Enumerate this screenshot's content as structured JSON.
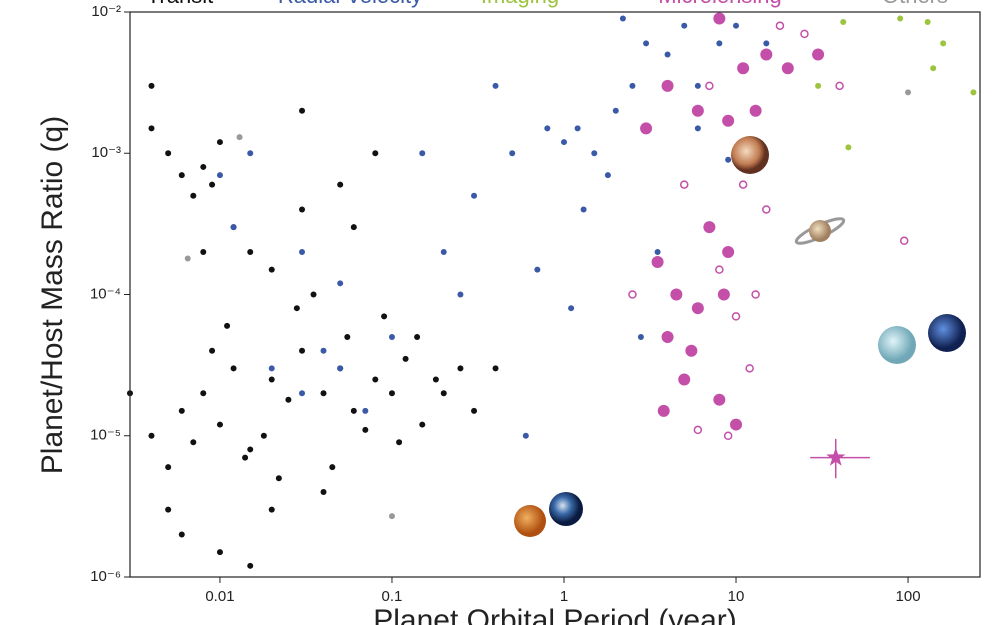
{
  "chart_data": {
    "type": "scatter",
    "xlabel": "Planet Orbital Period (year)",
    "ylabel": "Planet/Host Mass Ratio (q)",
    "xscale": "log",
    "yscale": "log",
    "legend": "top",
    "xlim": [
      0.003,
      262
    ],
    "ylim": [
      1e-06,
      0.01
    ],
    "xticks": [
      0.01,
      0.1,
      1,
      10,
      100
    ],
    "yticks": [
      {
        "value": 0.01,
        "label": "10⁻²"
      },
      {
        "value": 0.001,
        "label": "10⁻³"
      },
      {
        "value": 0.0001,
        "label": "10⁻⁴"
      },
      {
        "value": 1e-05,
        "label": "10⁻⁵"
      },
      {
        "value": 1e-06,
        "label": "10⁻⁶"
      }
    ],
    "series": [
      {
        "name": "Transit",
        "color": "#111111",
        "x": [
          0.004,
          0.006,
          0.008,
          0.01,
          0.012,
          0.015,
          0.02,
          0.025,
          0.03,
          0.04,
          0.05,
          0.06,
          0.08,
          0.1,
          0.12,
          0.15,
          0.2,
          0.25,
          0.3,
          0.005,
          0.007,
          0.009,
          0.011,
          0.014,
          0.018,
          0.022,
          0.028,
          0.035,
          0.045,
          0.055,
          0.07,
          0.09,
          0.11,
          0.14,
          0.18,
          0.004,
          0.005,
          0.006,
          0.007,
          0.008,
          0.009,
          0.01,
          0.012,
          0.004,
          0.015,
          0.02,
          0.03,
          0.05,
          0.08,
          0.006,
          0.01,
          0.02,
          0.04,
          0.003,
          0.005,
          0.008,
          0.015,
          0.03,
          0.06,
          0.4
        ],
        "y": [
          1e-05,
          1.5e-05,
          2e-05,
          1.2e-05,
          3e-05,
          8e-06,
          2.5e-05,
          1.8e-05,
          4e-05,
          2e-05,
          3e-05,
          1.5e-05,
          2.5e-05,
          2e-05,
          3.5e-05,
          1.2e-05,
          2e-05,
          3e-05,
          1.5e-05,
          6e-06,
          9e-06,
          4e-05,
          6e-05,
          7e-06,
          1e-05,
          5e-06,
          8e-05,
          0.0001,
          6e-06,
          5e-05,
          1.1e-05,
          7e-05,
          9e-06,
          5e-05,
          2.5e-05,
          0.0015,
          0.001,
          0.0007,
          0.0005,
          0.0008,
          0.0006,
          0.0012,
          0.0003,
          0.003,
          0.0002,
          0.00015,
          0.0004,
          0.0006,
          0.001,
          2e-06,
          1.5e-06,
          3e-06,
          4e-06,
          2e-05,
          3e-06,
          0.0002,
          1.2e-06,
          0.002,
          0.0003,
          3e-05
        ]
      },
      {
        "name": "Radial Velocity",
        "color": "#3a5aa8",
        "x": [
          0.01,
          0.015,
          0.02,
          0.03,
          0.04,
          0.05,
          0.07,
          0.1,
          0.03,
          0.05,
          0.2,
          0.3,
          0.5,
          0.8,
          1,
          1.2,
          1.5,
          2,
          2.5,
          3,
          4,
          5,
          6,
          8,
          1.3,
          1.8,
          0.7,
          0.4,
          3.5,
          10,
          15,
          2.2,
          1.1,
          0.6,
          0.25,
          6,
          9,
          2.8,
          0.15,
          0.012
        ],
        "y": [
          0.0007,
          0.001,
          3e-05,
          2e-05,
          4e-05,
          3e-05,
          1.5e-05,
          5e-05,
          0.0002,
          0.00012,
          0.0002,
          0.0005,
          0.001,
          0.0015,
          0.0012,
          0.0015,
          0.001,
          0.002,
          0.003,
          0.006,
          0.005,
          0.008,
          0.003,
          0.006,
          0.0004,
          0.0007,
          0.00015,
          0.003,
          0.0002,
          0.008,
          0.006,
          0.009,
          8e-05,
          1e-05,
          0.0001,
          0.0015,
          0.0009,
          5e-05,
          0.001,
          0.0003
        ]
      },
      {
        "name": "Imaging",
        "color": "#9cc43c",
        "x": [
          42,
          130,
          160,
          140,
          240,
          30,
          45,
          90
        ],
        "y": [
          0.0085,
          0.0085,
          0.006,
          0.004,
          0.0027,
          0.003,
          0.0011,
          0.009
        ]
      },
      {
        "name": "Microlensing",
        "color": "#c34fa8",
        "x": [
          3.8,
          5,
          8,
          10,
          4,
          5.5,
          7,
          4.5,
          6,
          8.5,
          3.5,
          9,
          11,
          13,
          4,
          6,
          3,
          8,
          20,
          30,
          15,
          9,
          6,
          9,
          2.5,
          10,
          12,
          8,
          5,
          15,
          95,
          13,
          40,
          7,
          25,
          18,
          11
        ],
        "y": [
          1.5e-05,
          2.5e-05,
          1.8e-05,
          1.2e-05,
          5e-05,
          4e-05,
          0.0003,
          0.0001,
          8e-05,
          0.0001,
          0.00017,
          0.0002,
          0.004,
          0.002,
          0.003,
          0.002,
          0.0015,
          0.009,
          0.004,
          0.005,
          0.005,
          0.0017,
          1.1e-05,
          1e-05,
          0.0001,
          7e-05,
          3e-05,
          0.00015,
          0.0006,
          0.0004,
          0.00024,
          0.0001,
          0.003,
          0.003,
          0.007,
          0.008,
          0.0006
        ],
        "hollow": [
          false,
          false,
          false,
          false,
          false,
          false,
          false,
          false,
          false,
          false,
          false,
          false,
          false,
          false,
          false,
          false,
          false,
          false,
          false,
          false,
          false,
          false,
          true,
          true,
          true,
          true,
          true,
          true,
          true,
          true,
          true,
          true,
          true,
          true,
          true,
          true,
          true
        ]
      },
      {
        "name": "Others",
        "color": "#999999",
        "x": [
          0.1,
          100,
          0.0065,
          0.013
        ],
        "y": [
          2.7e-06,
          0.0027,
          0.00018,
          0.0013
        ]
      }
    ],
    "highlight": {
      "x": 38,
      "y": 7e-06,
      "xrange": [
        27,
        60
      ],
      "yrange": [
        5e-06,
        9.5e-06
      ],
      "color": "#c34fa8"
    }
  }
}
